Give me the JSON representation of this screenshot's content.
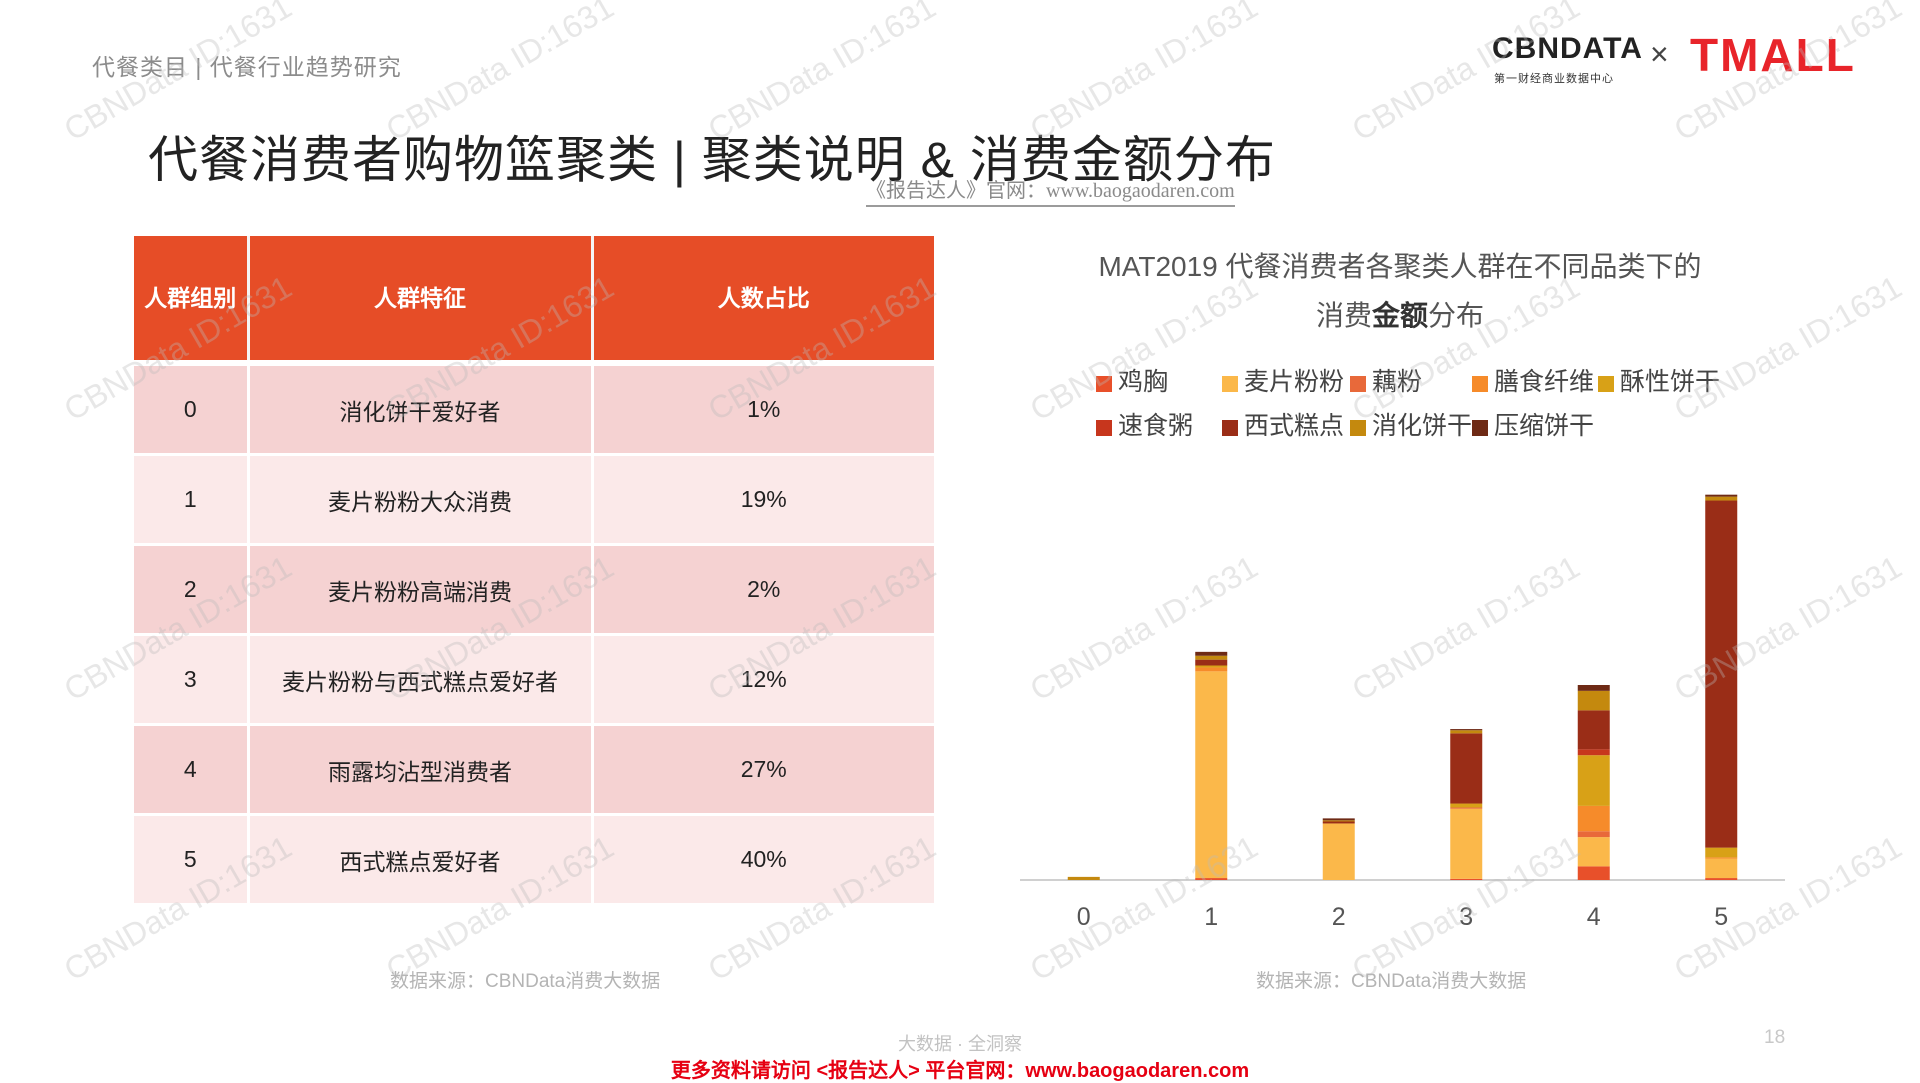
{
  "breadcrumb": "代餐类目 | 代餐行业趋势研究",
  "logo": {
    "cbn": "CBNDATA",
    "cbn_sub": "第一财经商业数据中心",
    "times": "×",
    "tmall": "TMALL"
  },
  "title": "代餐消费者购物篮聚类 | 聚类说明 & 消费金额分布",
  "site_watermark": "《报告达人》官网：www.baogaodaren.com",
  "table": {
    "headers": [
      "人群组别",
      "人群特征",
      "人数占比"
    ],
    "rows": [
      [
        "0",
        "消化饼干爱好者",
        "1%"
      ],
      [
        "1",
        "麦片粉粉大众消费",
        "19%"
      ],
      [
        "2",
        "麦片粉粉高端消费",
        "2%"
      ],
      [
        "3",
        "麦片粉粉与西式糕点爱好者",
        "12%"
      ],
      [
        "4",
        "雨露均沾型消费者",
        "27%"
      ],
      [
        "5",
        "西式糕点爱好者",
        "40%"
      ]
    ]
  },
  "source_left": "数据来源：CBNData消费大数据",
  "source_right": "数据来源：CBNData消费大数据",
  "footer_center": "大数据 · 全洞察",
  "page_number": "18",
  "bottom_link": "更多资料请访问 <报告达人> 平台官网：www.baogaodaren.com",
  "watermark_text": "CBNData ID:1631",
  "chart_data": {
    "type": "bar",
    "stacked": true,
    "title_line1": "MAT2019 代餐消费者各聚类人群在不同品类下的",
    "title_line2_prefix": "消费",
    "title_line2_bold": "金额",
    "title_line2_suffix": "分布",
    "categories": [
      "0",
      "1",
      "2",
      "3",
      "4",
      "5"
    ],
    "legend_position": "top",
    "gridlines": false,
    "y_axis_shown": false,
    "ylim": [
      0,
      100
    ],
    "series": [
      {
        "name": "鸡胸",
        "color": "#e8502a",
        "values": [
          0,
          0.5,
          0,
          0.3,
          3.5,
          0.5
        ]
      },
      {
        "name": "麦片粉粉",
        "color": "#fbb84a",
        "values": [
          0,
          53,
          14.5,
          18,
          7.5,
          5
        ]
      },
      {
        "name": "藕粉",
        "color": "#e8693a",
        "values": [
          0,
          0,
          0,
          0.3,
          1.5,
          0
        ]
      },
      {
        "name": "膳食纤维",
        "color": "#f68b2a",
        "values": [
          0,
          1,
          0,
          0,
          6.5,
          0.3
        ]
      },
      {
        "name": "酥性饼干",
        "color": "#d8a117",
        "values": [
          0,
          0.5,
          0,
          1,
          13,
          2.5
        ]
      },
      {
        "name": "速食粥",
        "color": "#c7361d",
        "values": [
          0,
          0,
          0,
          0,
          1.5,
          0
        ]
      },
      {
        "name": "西式糕点",
        "color": "#9a2d17",
        "values": [
          0,
          1.5,
          0.5,
          18,
          10,
          89
        ]
      },
      {
        "name": "消化饼干",
        "color": "#c4890e",
        "values": [
          0.8,
          1,
          0.3,
          0.8,
          5,
          1
        ]
      },
      {
        "name": "压缩饼干",
        "color": "#6e2a15",
        "values": [
          0,
          1,
          0.5,
          0.3,
          1.5,
          0.5
        ]
      }
    ]
  }
}
